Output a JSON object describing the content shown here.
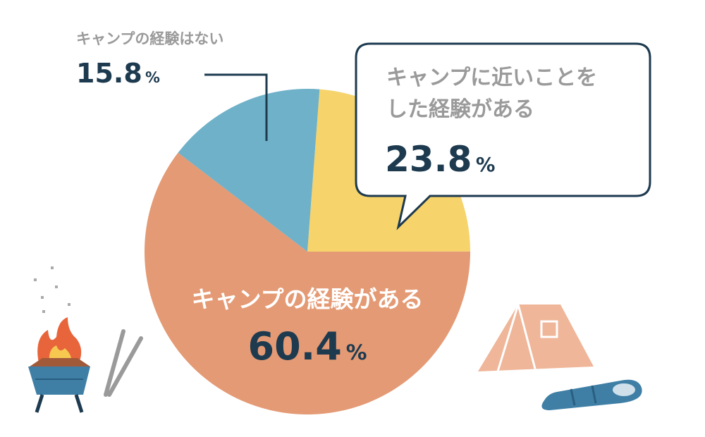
{
  "chart_data": {
    "type": "pie",
    "categories": [
      "キャンプに近いことをした経験がある",
      "キャンプの経験がある",
      "キャンプの経験はない"
    ],
    "values": [
      23.8,
      60.4,
      15.8
    ],
    "colors": [
      "#f6d36b",
      "#e49a74",
      "#6fb1c8"
    ],
    "unit": "%"
  }
}
